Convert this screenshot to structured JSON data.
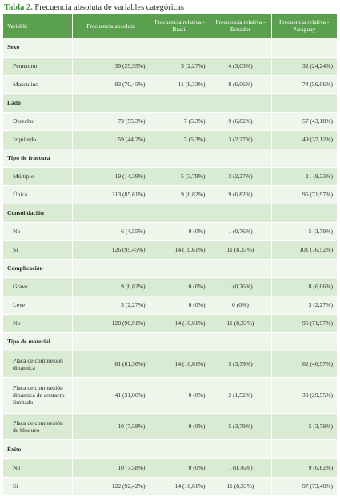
{
  "caption": {
    "label": "Tabla 2.",
    "text": "Frecuencia absoluta de variables categóricas"
  },
  "headers": [
    "Variable",
    "Frecuencia absoluta",
    "Frecuencia relativa - Brasil",
    "Frecuencia relativa - Ecuador",
    "Frecuencia relativa - Paraguay"
  ],
  "rows": [
    {
      "type": "section",
      "label": "Sexo"
    },
    {
      "type": "data",
      "label": "Femenino",
      "values": [
        "39 (29,55%)",
        "3 (2,27%)",
        "4 (3,03%)",
        "32 (24,24%)"
      ]
    },
    {
      "type": "data",
      "label": "Masculino",
      "values": [
        "93 (70,45%)",
        "11 (8,33%)",
        "8 (6,06%)",
        "74 (56,06%)"
      ]
    },
    {
      "type": "section",
      "label": "Lado"
    },
    {
      "type": "data",
      "label": "Derecho",
      "values": [
        "73 (55,3%)",
        "7 (5,3%)",
        "9 (6,82%)",
        "57 (43,18%)"
      ]
    },
    {
      "type": "data",
      "label": "Izquierdo",
      "values": [
        "59 (44,7%)",
        "7 (5,3%)",
        "3 (2,27%)",
        "49 (37,12%)"
      ]
    },
    {
      "type": "section",
      "label": "Tipo de fractura"
    },
    {
      "type": "data",
      "label": "Múltiple",
      "values": [
        "19 (14,39%)",
        "5 (3,79%)",
        "3 (2,27%)",
        "11 (8,33%)"
      ]
    },
    {
      "type": "data",
      "label": "Única",
      "values": [
        "113 (85,61%)",
        "9 (6,82%)",
        "9 (6,82%)",
        "95 (71,97%)"
      ]
    },
    {
      "type": "section",
      "label": "Consolidación"
    },
    {
      "type": "data",
      "label": "No",
      "values": [
        "6 (4,55%)",
        "0 (0%)",
        "1 (0,76%)",
        "5 (3,79%)"
      ]
    },
    {
      "type": "data",
      "label": "Sí",
      "values": [
        "126 (95,45%)",
        "14 (10,61%)",
        "11 (8,33%)",
        "101 (76,52%)"
      ]
    },
    {
      "type": "section",
      "label": "Complicación"
    },
    {
      "type": "data",
      "label": "Grave",
      "values": [
        "9 (6,82%)",
        "0 (0%)",
        "1 (0,76%)",
        "8 (6,06%)"
      ]
    },
    {
      "type": "data",
      "label": "Leve",
      "values": [
        "3 (2,27%)",
        "0 (0%)",
        "0 (0%)",
        "3 (2,27%)"
      ]
    },
    {
      "type": "data",
      "label": "No",
      "values": [
        "120 (90,91%)",
        "14 (10,61%)",
        "11 (8,33%)",
        "95 (71,97%)"
      ]
    },
    {
      "type": "section",
      "label": "Tipo de material"
    },
    {
      "type": "data",
      "label": "Placa de compresión dinámica",
      "values": [
        "81 (61,36%)",
        "14 (10,61%)",
        "5 (3,79%)",
        "62 (46,97%)"
      ]
    },
    {
      "type": "data",
      "label": "Placa de compresión dinámica de contacto limitado",
      "values": [
        "41 (31,06%)",
        "0 (0%)",
        "2 (1,52%)",
        "39 (29,55%)"
      ]
    },
    {
      "type": "data",
      "label": "Placa de compresión de bloqueo",
      "values": [
        "10 (7,58%)",
        "0 (0%)",
        "5 (3,79%)",
        "5 (3,79%)"
      ]
    },
    {
      "type": "section",
      "label": "Éxito"
    },
    {
      "type": "data",
      "label": "No",
      "values": [
        "10 (7,58%)",
        "0 (0%)",
        "1 (0,76%)",
        "9 (6,82%)"
      ]
    },
    {
      "type": "data",
      "label": "Sí",
      "values": [
        "122 (92,42%)",
        "14 (10,61%)",
        "11 (8,33%)",
        "97 (73,48%)"
      ]
    }
  ]
}
